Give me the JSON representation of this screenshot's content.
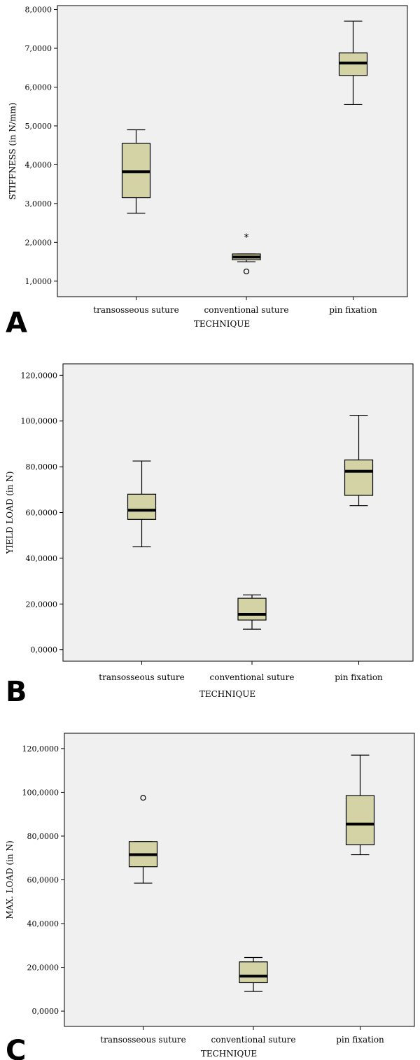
{
  "chart_data": [
    {
      "type": "box",
      "panel_label": "A",
      "xlabel": "TECHNIQUE",
      "ylabel": "STIFFNESS (in N/mm)",
      "ylim": [
        0.6,
        8.1
      ],
      "yticks": [
        1,
        2,
        3,
        4,
        5,
        6,
        7,
        8
      ],
      "ytick_labels": [
        "1,0000",
        "2,0000",
        "3,0000",
        "4,0000",
        "5,0000",
        "6,0000",
        "7,0000",
        "8,0000"
      ],
      "categories": [
        "transosseous suture",
        "conventional suture",
        "pin fixation"
      ],
      "boxes": [
        {
          "min": 2.75,
          "q1": 3.15,
          "median": 3.82,
          "q3": 4.55,
          "max": 4.9,
          "outliers": []
        },
        {
          "min": 1.5,
          "q1": 1.55,
          "median": 1.62,
          "q3": 1.7,
          "max": 1.7,
          "outliers": [
            {
              "value": 2.15,
              "kind": "star"
            },
            {
              "value": 1.25,
              "kind": "circle"
            }
          ]
        },
        {
          "min": 5.55,
          "q1": 6.3,
          "median": 6.62,
          "q3": 6.88,
          "max": 7.7,
          "outliers": []
        }
      ]
    },
    {
      "type": "box",
      "panel_label": "B",
      "xlabel": "TECHNIQUE",
      "ylabel": "YIELD LOAD (in N)",
      "ylim": [
        -5,
        125
      ],
      "yticks": [
        0,
        20,
        40,
        60,
        80,
        100,
        120
      ],
      "ytick_labels": [
        "0,0000",
        "20,0000",
        "40,0000",
        "60,0000",
        "80,0000",
        "100,0000",
        "120,0000"
      ],
      "categories": [
        "transosseous suture",
        "conventional suture",
        "pin fixation"
      ],
      "boxes": [
        {
          "min": 45,
          "q1": 57,
          "median": 61,
          "q3": 68,
          "max": 82.5,
          "outliers": []
        },
        {
          "min": 9,
          "q1": 13,
          "median": 15.5,
          "q3": 22.5,
          "max": 24,
          "outliers": []
        },
        {
          "min": 63,
          "q1": 67.5,
          "median": 78,
          "q3": 83,
          "max": 102.5,
          "outliers": []
        }
      ]
    },
    {
      "type": "box",
      "panel_label": "C",
      "xlabel": "TECHNIQUE",
      "ylabel": "MAX. LOAD (in N)",
      "ylim": [
        -7,
        127
      ],
      "yticks": [
        0,
        20,
        40,
        60,
        80,
        100,
        120
      ],
      "ytick_labels": [
        "0,0000",
        "20,0000",
        "40,0000",
        "60,0000",
        "80,0000",
        "100,0000",
        "120,0000"
      ],
      "categories": [
        "transosseous suture",
        "conventional suture",
        "pin fixation"
      ],
      "boxes": [
        {
          "min": 58.5,
          "q1": 66,
          "median": 71.5,
          "q3": 77.5,
          "max": 77.5,
          "outliers": [
            {
              "value": 97.5,
              "kind": "circle"
            }
          ]
        },
        {
          "min": 9,
          "q1": 13,
          "median": 16,
          "q3": 22.5,
          "max": 24.5,
          "outliers": []
        },
        {
          "min": 71.5,
          "q1": 76,
          "median": 85.5,
          "q3": 98.5,
          "max": 117,
          "outliers": []
        }
      ]
    }
  ]
}
